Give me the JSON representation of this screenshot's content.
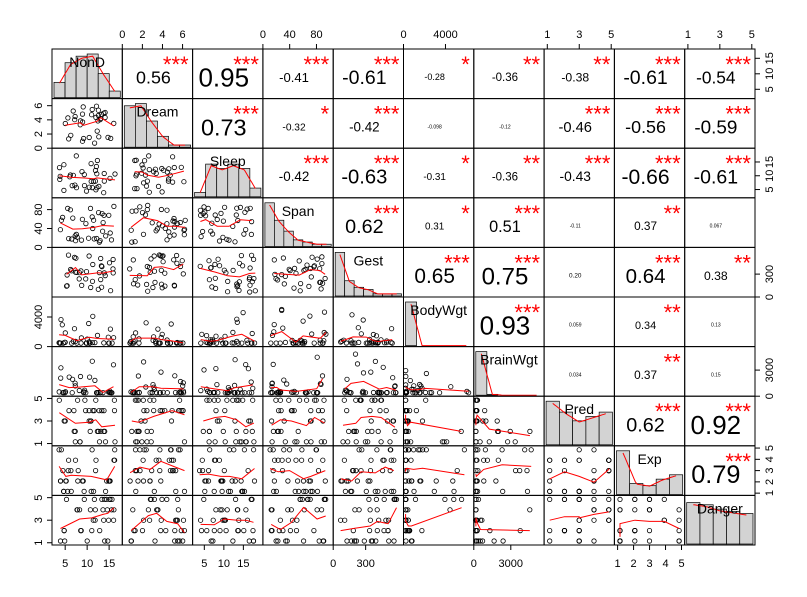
{
  "chart_data": {
    "type": "scatter",
    "title": "",
    "variables": [
      {
        "name": "NonD",
        "ticks": [
          "5",
          "10",
          "15"
        ],
        "range": [
          2,
          18
        ],
        "side": "right"
      },
      {
        "name": "Dream",
        "ticks": [
          "0",
          "2",
          "4",
          "6"
        ],
        "range": [
          0,
          7
        ],
        "side": "left"
      },
      {
        "name": "Sleep",
        "ticks": [
          "5",
          "10",
          "15"
        ],
        "range": [
          2,
          20
        ],
        "side": "right"
      },
      {
        "name": "Span",
        "ticks": [
          "0",
          "40",
          "80"
        ],
        "range": [
          0,
          105
        ],
        "side": "left"
      },
      {
        "name": "Gest",
        "ticks": [
          "0",
          "300"
        ],
        "range": [
          0,
          650
        ],
        "side": "right"
      },
      {
        "name": "BodyWgt",
        "ticks": [
          "0",
          "4000"
        ],
        "range": [
          0,
          6700
        ],
        "side": "left"
      },
      {
        "name": "BrainWgt",
        "ticks": [
          "0",
          "3000"
        ],
        "range": [
          0,
          5700
        ],
        "side": "right"
      },
      {
        "name": "Pred",
        "ticks": [
          "1",
          "3",
          "5"
        ],
        "range": [
          0.8,
          5.2
        ],
        "side": "left"
      },
      {
        "name": "Exp",
        "ticks": [
          "1",
          "2",
          "3",
          "4",
          "5"
        ],
        "range": [
          0.8,
          5.2
        ],
        "side": "right"
      },
      {
        "name": "Danger",
        "ticks": [
          "1",
          "3",
          "5"
        ],
        "range": [
          0.8,
          5.2
        ],
        "side": "left"
      }
    ],
    "correlations": [
      {
        "row": 0,
        "col": 1,
        "r": "0.56",
        "stars": "***"
      },
      {
        "row": 0,
        "col": 2,
        "r": "0.95",
        "stars": "***"
      },
      {
        "row": 0,
        "col": 3,
        "r": "-0.41",
        "stars": "***"
      },
      {
        "row": 0,
        "col": 4,
        "r": "-0.61",
        "stars": "***"
      },
      {
        "row": 0,
        "col": 5,
        "r": "-0.28",
        "stars": "*"
      },
      {
        "row": 0,
        "col": 6,
        "r": "-0.36",
        "stars": "**"
      },
      {
        "row": 0,
        "col": 7,
        "r": "-0.38",
        "stars": "**"
      },
      {
        "row": 0,
        "col": 8,
        "r": "-0.61",
        "stars": "***"
      },
      {
        "row": 0,
        "col": 9,
        "r": "-0.54",
        "stars": "***"
      },
      {
        "row": 1,
        "col": 2,
        "r": "0.73",
        "stars": "***"
      },
      {
        "row": 1,
        "col": 3,
        "r": "-0.32",
        "stars": "*"
      },
      {
        "row": 1,
        "col": 4,
        "r": "-0.42",
        "stars": "***"
      },
      {
        "row": 1,
        "col": 5,
        "r": "-0.098",
        "stars": ""
      },
      {
        "row": 1,
        "col": 6,
        "r": "-0.12",
        "stars": ""
      },
      {
        "row": 1,
        "col": 7,
        "r": "-0.46",
        "stars": "***"
      },
      {
        "row": 1,
        "col": 8,
        "r": "-0.56",
        "stars": "***"
      },
      {
        "row": 1,
        "col": 9,
        "r": "-0.59",
        "stars": "***"
      },
      {
        "row": 2,
        "col": 3,
        "r": "-0.42",
        "stars": "***"
      },
      {
        "row": 2,
        "col": 4,
        "r": "-0.63",
        "stars": "***"
      },
      {
        "row": 2,
        "col": 5,
        "r": "-0.31",
        "stars": "*"
      },
      {
        "row": 2,
        "col": 6,
        "r": "-0.36",
        "stars": "**"
      },
      {
        "row": 2,
        "col": 7,
        "r": "-0.43",
        "stars": "***"
      },
      {
        "row": 2,
        "col": 8,
        "r": "-0.66",
        "stars": "***"
      },
      {
        "row": 2,
        "col": 9,
        "r": "-0.61",
        "stars": "***"
      },
      {
        "row": 3,
        "col": 4,
        "r": "0.62",
        "stars": "***"
      },
      {
        "row": 3,
        "col": 5,
        "r": "0.31",
        "stars": "*"
      },
      {
        "row": 3,
        "col": 6,
        "r": "0.51",
        "stars": "***"
      },
      {
        "row": 3,
        "col": 7,
        "r": "-0.11",
        "stars": ""
      },
      {
        "row": 3,
        "col": 8,
        "r": "0.37",
        "stars": "**"
      },
      {
        "row": 3,
        "col": 9,
        "r": "0.067",
        "stars": ""
      },
      {
        "row": 4,
        "col": 5,
        "r": "0.65",
        "stars": "***"
      },
      {
        "row": 4,
        "col": 6,
        "r": "0.75",
        "stars": "***"
      },
      {
        "row": 4,
        "col": 7,
        "r": "0.20",
        "stars": ""
      },
      {
        "row": 4,
        "col": 8,
        "r": "0.64",
        "stars": "***"
      },
      {
        "row": 4,
        "col": 9,
        "r": "0.38",
        "stars": "**"
      },
      {
        "row": 5,
        "col": 6,
        "r": "0.93",
        "stars": "***"
      },
      {
        "row": 5,
        "col": 7,
        "r": "0.059",
        "stars": ""
      },
      {
        "row": 5,
        "col": 8,
        "r": "0.34",
        "stars": "**"
      },
      {
        "row": 5,
        "col": 9,
        "r": "0.13",
        "stars": ""
      },
      {
        "row": 6,
        "col": 7,
        "r": "0.034",
        "stars": ""
      },
      {
        "row": 6,
        "col": 8,
        "r": "0.37",
        "stars": "**"
      },
      {
        "row": 6,
        "col": 9,
        "r": "0.15",
        "stars": ""
      },
      {
        "row": 7,
        "col": 8,
        "r": "0.62",
        "stars": "***"
      },
      {
        "row": 7,
        "col": 9,
        "r": "0.92",
        "stars": "***"
      },
      {
        "row": 8,
        "col": 9,
        "r": "0.79",
        "stars": "***"
      }
    ],
    "histograms": [
      [
        0.35,
        0.8,
        0.95,
        1.0,
        0.55,
        0.15
      ],
      [
        0.95,
        1.0,
        0.6,
        0.25,
        0.05,
        0.05
      ],
      [
        0.1,
        0.75,
        0.65,
        0.75,
        0.65,
        0.2
      ],
      [
        1.0,
        0.6,
        0.35,
        0.15,
        0.1,
        0.05,
        0.05
      ],
      [
        1.0,
        0.35,
        0.2,
        0.15,
        0.05,
        0.05,
        0.05
      ],
      [
        1.0,
        0.0,
        0.0,
        0.0,
        0.0,
        0.0
      ],
      [
        1.0,
        0.02,
        0.0,
        0.0,
        0.0,
        0.0
      ],
      [
        1.0,
        0.75,
        0.55,
        0.65,
        0.75
      ],
      [
        1.0,
        0.25,
        0.2,
        0.35,
        0.45
      ],
      [
        0.95,
        0.9,
        0.8,
        0.75,
        0.7
      ]
    ],
    "grid": false,
    "legend": "none",
    "colors": {
      "points": "#000000",
      "smoother": "#ff0000",
      "stars": "#ff0000",
      "histogram_fill": "#d3d3d3"
    }
  }
}
